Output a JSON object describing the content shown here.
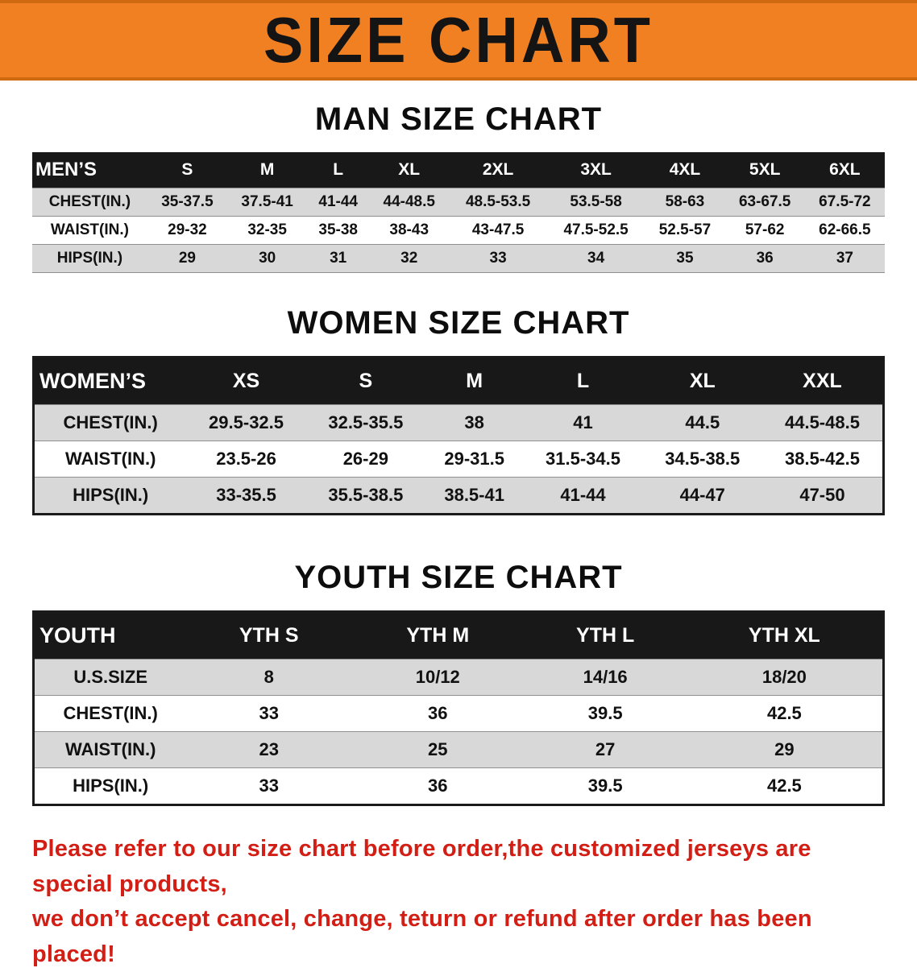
{
  "colors": {
    "banner_bg": "#f08021",
    "header_bg": "#181818",
    "stripe": "#d8d8d8",
    "notice_red": "#d21e14",
    "title_black": "#111111"
  },
  "banner": {
    "title": "SIZE CHART"
  },
  "sections": [
    {
      "id": "men",
      "title": "MAN SIZE CHART",
      "header_label": "MEN’S",
      "columns": [
        "S",
        "M",
        "L",
        "XL",
        "2XL",
        "3XL",
        "4XL",
        "5XL",
        "6XL"
      ],
      "rows": [
        {
          "label": "CHEST(IN.)",
          "values": [
            "35-37.5",
            "37.5-41",
            "41-44",
            "44-48.5",
            "48.5-53.5",
            "53.5-58",
            "58-63",
            "63-67.5",
            "67.5-72"
          ]
        },
        {
          "label": "WAIST(IN.)",
          "values": [
            "29-32",
            "32-35",
            "35-38",
            "38-43",
            "43-47.5",
            "47.5-52.5",
            "52.5-57",
            "57-62",
            "62-66.5"
          ]
        },
        {
          "label": "HIPS(IN.)",
          "values": [
            "29",
            "30",
            "31",
            "32",
            "33",
            "34",
            "35",
            "36",
            "37"
          ]
        }
      ]
    },
    {
      "id": "women",
      "title": "WOMEN SIZE CHART",
      "header_label": "WOMEN’S",
      "columns": [
        "XS",
        "S",
        "M",
        "L",
        "XL",
        "XXL"
      ],
      "rows": [
        {
          "label": "CHEST(IN.)",
          "values": [
            "29.5-32.5",
            "32.5-35.5",
            "38",
            "41",
            "44.5",
            "44.5-48.5"
          ]
        },
        {
          "label": "WAIST(IN.)",
          "values": [
            "23.5-26",
            "26-29",
            "29-31.5",
            "31.5-34.5",
            "34.5-38.5",
            "38.5-42.5"
          ]
        },
        {
          "label": "HIPS(IN.)",
          "values": [
            "33-35.5",
            "35.5-38.5",
            "38.5-41",
            "41-44",
            "44-47",
            "47-50"
          ]
        }
      ]
    },
    {
      "id": "youth",
      "title": "YOUTH SIZE CHART",
      "header_label": "YOUTH",
      "columns": [
        "YTH S",
        "YTH M",
        "YTH L",
        "YTH XL"
      ],
      "rows": [
        {
          "label": "U.S.SIZE",
          "values": [
            "8",
            "10/12",
            "14/16",
            "18/20"
          ]
        },
        {
          "label": "CHEST(IN.)",
          "values": [
            "33",
            "36",
            "39.5",
            "42.5"
          ]
        },
        {
          "label": "WAIST(IN.)",
          "values": [
            "23",
            "25",
            "27",
            "29"
          ]
        },
        {
          "label": "HIPS(IN.)",
          "values": [
            "33",
            "36",
            "39.5",
            "42.5"
          ]
        }
      ]
    }
  ],
  "footer": {
    "line1": "Please refer to our size chart before order,the customized jerseys are special products,",
    "line2": "we don’t accept cancel, change, teturn or refund after order has been placed!"
  }
}
